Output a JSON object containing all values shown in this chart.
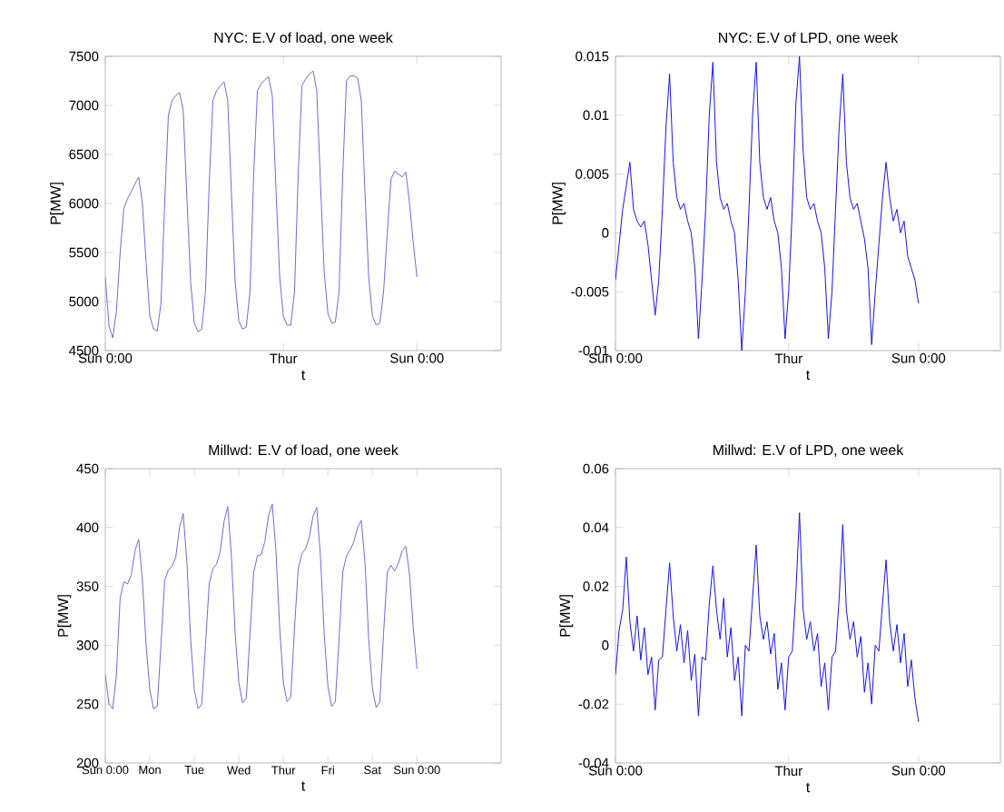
{
  "chart_data": [
    {
      "type": "line",
      "title": "NYC: E.V of load, one week",
      "xlabel": "t",
      "ylabel": "P[MW]",
      "ylim": [
        4500,
        7500
      ],
      "categories": [
        "Sun 0:00",
        null,
        null,
        null,
        null,
        null,
        null,
        null,
        null,
        null,
        null,
        null,
        null,
        null,
        null,
        null,
        null,
        null,
        null,
        null,
        null,
        null,
        null,
        null,
        null,
        null,
        null,
        null,
        null,
        null,
        null,
        null,
        null,
        null,
        null,
        null,
        null,
        null,
        null,
        null,
        null,
        null,
        null,
        null,
        null,
        null,
        null,
        null,
        "Thur",
        null,
        null,
        null,
        null,
        null,
        null,
        null,
        null,
        null,
        null,
        null,
        null,
        null,
        null,
        null,
        null,
        null,
        null,
        null,
        null,
        null,
        null,
        null,
        null,
        null,
        null,
        null,
        null,
        null,
        null,
        null,
        null,
        null,
        null,
        null,
        "Sun 0:00"
      ],
      "yticks": [
        4500,
        5000,
        5500,
        6000,
        6500,
        7000,
        7500
      ],
      "series": [
        {
          "color": "#6b6bdc",
          "values": [
            5250,
            4750,
            4630,
            4900,
            5500,
            5950,
            6050,
            6120,
            6200,
            6270,
            6000,
            5400,
            4850,
            4720,
            4700,
            4980,
            6000,
            6900,
            7050,
            7100,
            7130,
            6950,
            6050,
            5200,
            4780,
            4690,
            4720,
            5100,
            6200,
            7050,
            7150,
            7200,
            7240,
            7050,
            6100,
            5200,
            4800,
            4720,
            4740,
            5100,
            6300,
            7150,
            7220,
            7260,
            7290,
            7100,
            6150,
            5250,
            4850,
            4760,
            4760,
            5100,
            6300,
            7200,
            7270,
            7320,
            7350,
            7150,
            6200,
            5300,
            4880,
            4780,
            4790,
            5100,
            6300,
            7250,
            7300,
            7300,
            7280,
            7050,
            6100,
            5250,
            4850,
            4760,
            4780,
            5100,
            5700,
            6250,
            6330,
            6300,
            6270,
            6320,
            6000,
            5600,
            5250
          ]
        }
      ]
    },
    {
      "type": "line",
      "title": "NYC: E.V of LPD, one week",
      "xlabel": "t",
      "ylabel": "P[MW]",
      "ylim": [
        -0.01,
        0.015
      ],
      "categories": [
        "Sun 0:00",
        null,
        null,
        null,
        null,
        null,
        null,
        null,
        null,
        null,
        null,
        null,
        null,
        null,
        null,
        null,
        null,
        null,
        null,
        null,
        null,
        null,
        null,
        null,
        null,
        null,
        null,
        null,
        null,
        null,
        null,
        null,
        null,
        null,
        null,
        null,
        null,
        null,
        null,
        null,
        null,
        null,
        null,
        null,
        null,
        null,
        null,
        null,
        "Thur",
        null,
        null,
        null,
        null,
        null,
        null,
        null,
        null,
        null,
        null,
        null,
        null,
        null,
        null,
        null,
        null,
        null,
        null,
        null,
        null,
        null,
        null,
        null,
        null,
        null,
        null,
        null,
        null,
        null,
        null,
        null,
        null,
        null,
        null,
        null,
        "Sun 0:00"
      ],
      "yticks": [
        -0.01,
        -0.005,
        0,
        0.005,
        0.01,
        0.015
      ],
      "series": [
        {
          "color": "#1414f0",
          "values": [
            -0.004,
            -0.001,
            0.002,
            0.004,
            0.006,
            0.002,
            0.001,
            0.0005,
            0.001,
            -0.001,
            -0.004,
            -0.007,
            -0.004,
            0.002,
            0.009,
            0.0135,
            0.006,
            0.003,
            0.002,
            0.0025,
            0.001,
            0.0,
            -0.003,
            -0.009,
            -0.004,
            0.002,
            0.01,
            0.0145,
            0.006,
            0.003,
            0.002,
            0.0025,
            0.001,
            0.0,
            -0.004,
            -0.01,
            -0.005,
            0.002,
            0.01,
            0.0145,
            0.006,
            0.003,
            0.002,
            0.003,
            0.001,
            0.0,
            -0.003,
            -0.009,
            -0.005,
            0.002,
            0.011,
            0.015,
            0.007,
            0.003,
            0.002,
            0.0025,
            0.001,
            0.0,
            -0.003,
            -0.009,
            -0.005,
            0.002,
            0.009,
            0.0135,
            0.006,
            0.003,
            0.002,
            0.0025,
            0.001,
            -0.0005,
            -0.003,
            -0.0095,
            -0.005,
            -0.001,
            0.003,
            0.006,
            0.003,
            0.001,
            0.002,
            0.0,
            0.001,
            -0.002,
            -0.003,
            -0.004,
            -0.006
          ]
        }
      ]
    },
    {
      "type": "line",
      "title": "Millwd: E.V of load, one week",
      "xlabel": "t",
      "ylabel": "P[MW]",
      "ylim": [
        200,
        450
      ],
      "categories": [
        "Sun 0:00",
        null,
        null,
        null,
        null,
        null,
        null,
        null,
        null,
        null,
        null,
        null,
        "Mon",
        null,
        null,
        null,
        null,
        null,
        null,
        null,
        null,
        null,
        null,
        null,
        "Tue",
        null,
        null,
        null,
        null,
        null,
        null,
        null,
        null,
        null,
        null,
        null,
        "Wed",
        null,
        null,
        null,
        null,
        null,
        null,
        null,
        null,
        null,
        null,
        null,
        "Thur",
        null,
        null,
        null,
        null,
        null,
        null,
        null,
        null,
        null,
        null,
        null,
        "Fri",
        null,
        null,
        null,
        null,
        null,
        null,
        null,
        null,
        null,
        null,
        null,
        "Sat",
        null,
        null,
        null,
        null,
        null,
        null,
        null,
        null,
        null,
        null,
        null,
        "Sun 0:00"
      ],
      "yticks": [
        200,
        250,
        300,
        350,
        400,
        450
      ],
      "series": [
        {
          "color": "#6b6bdc",
          "values": [
            275,
            250,
            246,
            275,
            340,
            354,
            352,
            360,
            380,
            390,
            355,
            300,
            262,
            246,
            248,
            300,
            355,
            364,
            367,
            375,
            400,
            412,
            370,
            305,
            262,
            246,
            250,
            300,
            352,
            365,
            369,
            380,
            405,
            418,
            375,
            310,
            268,
            251,
            255,
            310,
            362,
            376,
            377,
            388,
            410,
            420,
            380,
            315,
            268,
            252,
            256,
            315,
            365,
            378,
            382,
            392,
            410,
            417,
            375,
            310,
            265,
            248,
            252,
            305,
            362,
            376,
            381,
            388,
            400,
            406,
            370,
            305,
            263,
            247,
            252,
            310,
            362,
            368,
            363,
            370,
            380,
            384,
            360,
            315,
            280
          ]
        }
      ]
    },
    {
      "type": "line",
      "title": "Millwd: E.V of LPD, one week",
      "xlabel": "t",
      "ylabel": "P[MW]",
      "ylim": [
        -0.04,
        0.06
      ],
      "categories": [
        "Sun 0:00",
        null,
        null,
        null,
        null,
        null,
        null,
        null,
        null,
        null,
        null,
        null,
        null,
        null,
        null,
        null,
        null,
        null,
        null,
        null,
        null,
        null,
        null,
        null,
        null,
        null,
        null,
        null,
        null,
        null,
        null,
        null,
        null,
        null,
        null,
        null,
        null,
        null,
        null,
        null,
        null,
        null,
        null,
        null,
        null,
        null,
        null,
        null,
        "Thur",
        null,
        null,
        null,
        null,
        null,
        null,
        null,
        null,
        null,
        null,
        null,
        null,
        null,
        null,
        null,
        null,
        null,
        null,
        null,
        null,
        null,
        null,
        null,
        null,
        null,
        null,
        null,
        null,
        null,
        null,
        null,
        null,
        null,
        null,
        null,
        "Sun 0:00"
      ],
      "yticks": [
        -0.04,
        -0.02,
        0,
        0.02,
        0.04,
        0.06
      ],
      "series": [
        {
          "color": "#1414f0",
          "values": [
            -0.01,
            0.005,
            0.012,
            0.03,
            0.008,
            -0.002,
            0.01,
            -0.005,
            0.006,
            -0.01,
            -0.004,
            -0.022,
            -0.005,
            -0.004,
            0.012,
            0.028,
            0.01,
            -0.002,
            0.007,
            -0.006,
            0.005,
            -0.012,
            -0.003,
            -0.024,
            -0.004,
            -0.005,
            0.014,
            0.027,
            0.012,
            0.002,
            0.016,
            -0.004,
            0.006,
            -0.012,
            -0.004,
            -0.024,
            0.0,
            -0.002,
            0.016,
            0.034,
            0.01,
            0.002,
            0.008,
            -0.003,
            0.004,
            -0.015,
            -0.006,
            -0.022,
            -0.004,
            -0.002,
            0.018,
            0.045,
            0.012,
            0.002,
            0.008,
            -0.002,
            0.004,
            -0.014,
            -0.006,
            -0.022,
            -0.004,
            -0.002,
            0.016,
            0.041,
            0.012,
            0.002,
            0.008,
            -0.004,
            0.003,
            -0.016,
            -0.006,
            -0.02,
            0.0,
            -0.002,
            0.014,
            0.029,
            0.008,
            -0.002,
            0.007,
            -0.006,
            0.004,
            -0.014,
            -0.005,
            -0.018,
            -0.026
          ]
        }
      ]
    }
  ]
}
